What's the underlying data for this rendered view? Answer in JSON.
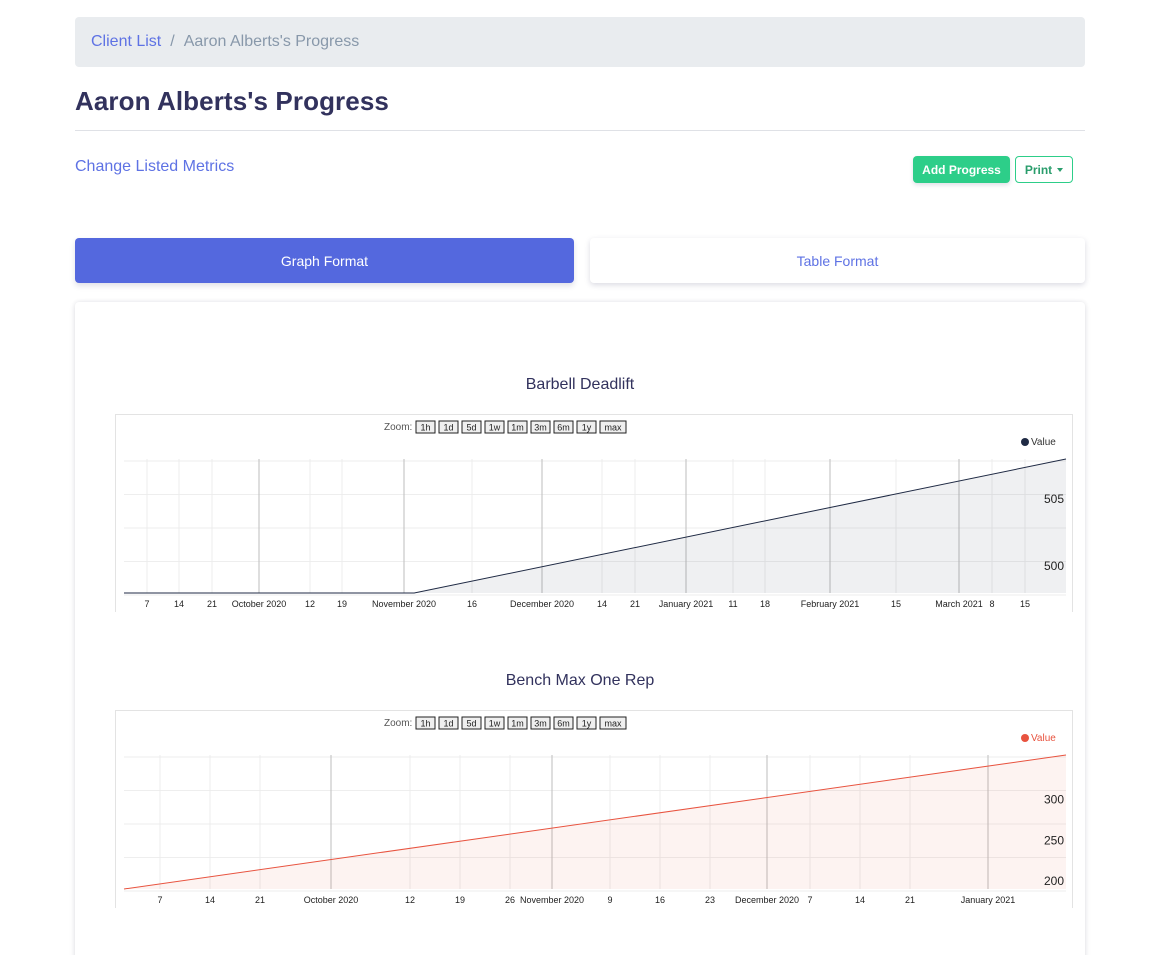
{
  "breadcrumb": {
    "link": "Client List",
    "separator": "/",
    "current": "Aaron Alberts's Progress"
  },
  "page_title": "Aaron Alberts's Progress",
  "change_metrics": "Change Listed Metrics",
  "buttons": {
    "add_progress": "Add Progress",
    "print": "Print"
  },
  "tabs": {
    "graph": "Graph Format",
    "table": "Table Format"
  },
  "zoom_label": "Zoom:",
  "zoom_buttons": [
    "1h",
    "1d",
    "5d",
    "1w",
    "1m",
    "3m",
    "6m",
    "1y",
    "max"
  ],
  "colors": {
    "accent": "#5e72e4",
    "success": "#2dce89",
    "deadlift_line": "#1f2a44",
    "bench_line": "#e8533f"
  },
  "chart_data": [
    {
      "type": "area",
      "title": "Barbell Deadlift",
      "legend": "Value",
      "legend_position": "top-right",
      "x": [
        "2020-09-01",
        "2020-11-05",
        "2021-03-31"
      ],
      "y": [
        498,
        498,
        508
      ],
      "ylim": [
        498,
        508
      ],
      "y_ticks": [
        500,
        505
      ],
      "x_tick_labels": [
        "7",
        "14",
        "21",
        "October 2020",
        "12",
        "19",
        "November 2020",
        "16",
        "December 2020",
        "14",
        "21",
        "January 2021",
        "11",
        "18",
        "February 2021",
        "15",
        "March 2021",
        "8",
        "15"
      ],
      "grid": true
    },
    {
      "type": "area",
      "title": "Bench Max One Rep",
      "legend": "Value",
      "legend_position": "top-right",
      "x": [
        "2020-09-01",
        "2021-01-15"
      ],
      "y": [
        190,
        355
      ],
      "ylim": [
        190,
        355
      ],
      "y_ticks": [
        200,
        250,
        300
      ],
      "x_tick_labels": [
        "7",
        "14",
        "21",
        "October 2020",
        "12",
        "19",
        "26",
        "November 2020",
        "9",
        "16",
        "23",
        "December 2020",
        "7",
        "14",
        "21",
        "January 2021"
      ],
      "grid": true
    }
  ]
}
